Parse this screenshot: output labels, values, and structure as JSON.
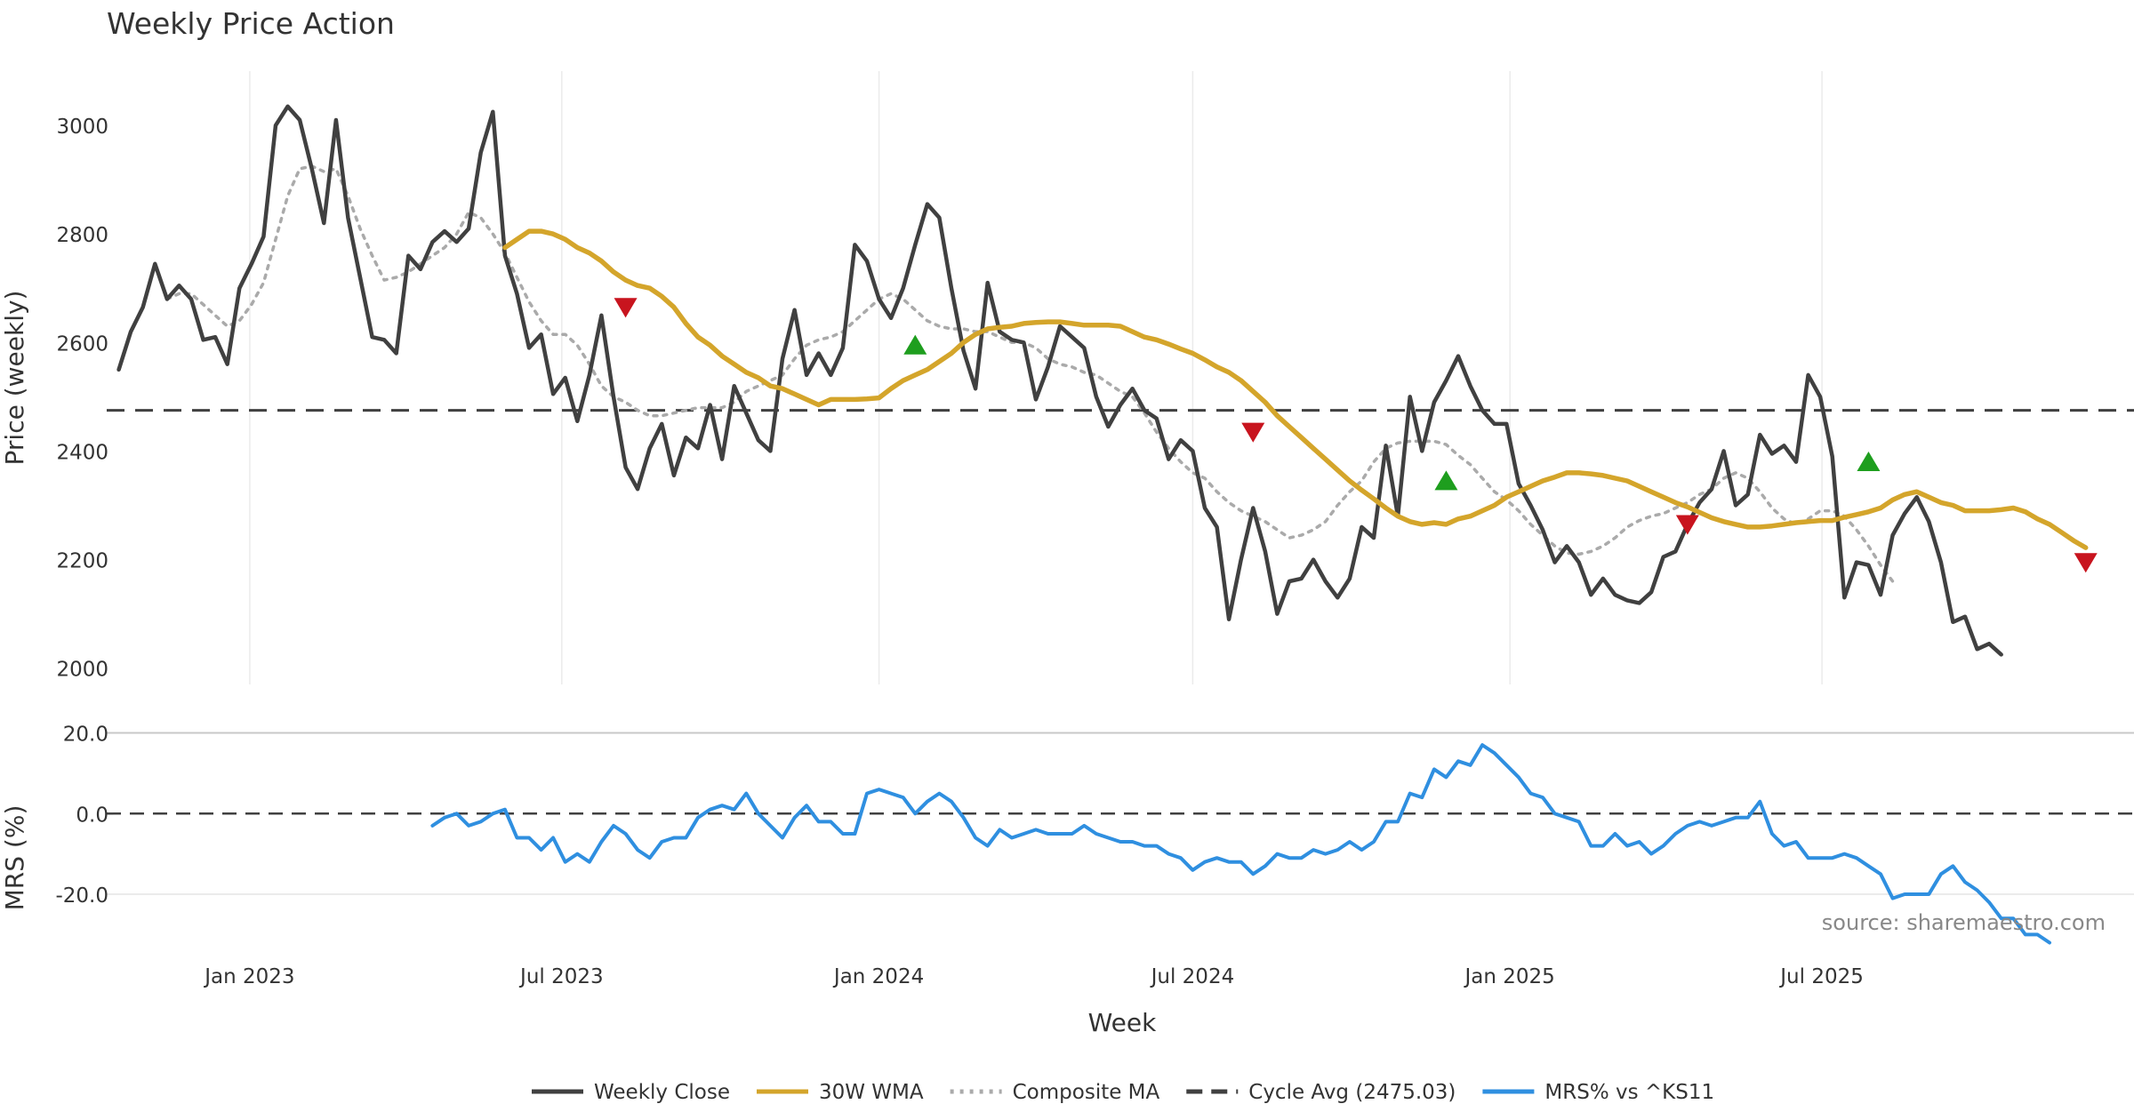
{
  "chart_data": {
    "type": "line",
    "title": "Weekly Price Action",
    "xlabel": "Week",
    "source": "source: sharemaestro.com",
    "x_ticks": [
      "Jan 2023",
      "Jul 2023",
      "Jan 2024",
      "Jul 2024",
      "Jan 2025",
      "Jul 2025"
    ],
    "x_range": [
      "2022-10-10",
      "2025-12-29"
    ],
    "grid": true,
    "legend_position": "bottom-center",
    "price_panel": {
      "ylabel": "Price (weekly)",
      "ylim": [
        1970,
        3100
      ],
      "y_ticks": [
        2000,
        2200,
        2400,
        2600,
        2800,
        3000
      ],
      "cycle_avg": 2475.03,
      "series": [
        {
          "name": "Weekly Close",
          "key": "close",
          "color": "#404040",
          "style": "solid",
          "start": "2022-10-17",
          "values": [
            2550,
            2620,
            2665,
            2745,
            2680,
            2705,
            2680,
            2605,
            2610,
            2560,
            2700,
            2745,
            2795,
            3000,
            3035,
            3010,
            2920,
            2820,
            3010,
            2830,
            2720,
            2610,
            2605,
            2580,
            2760,
            2735,
            2785,
            2805,
            2785,
            2810,
            2950,
            3025,
            2760,
            2690,
            2590,
            2615,
            2505,
            2535,
            2455,
            2540,
            2650,
            2500,
            2370,
            2330,
            2405,
            2450,
            2355,
            2425,
            2405,
            2485,
            2385,
            2520,
            2470,
            2420,
            2400,
            2570,
            2660,
            2540,
            2580,
            2540,
            2590,
            2780,
            2750,
            2680,
            2645,
            2700,
            2780,
            2855,
            2830,
            2700,
            2585,
            2515,
            2710,
            2620,
            2605,
            2600,
            2495,
            2555,
            2630,
            2610,
            2590,
            2500,
            2445,
            2485,
            2515,
            2475,
            2460,
            2385,
            2420,
            2400,
            2295,
            2260,
            2090,
            2200,
            2295,
            2215,
            2100,
            2160,
            2165,
            2200,
            2160,
            2130,
            2165,
            2260,
            2240,
            2410,
            2280,
            2500,
            2400,
            2490,
            2530,
            2575,
            2520,
            2475,
            2450,
            2450,
            2340,
            2300,
            2255,
            2195,
            2225,
            2195,
            2135,
            2165,
            2135,
            2125,
            2120,
            2140,
            2205,
            2215,
            2265,
            2305,
            2330,
            2400,
            2300,
            2320,
            2430,
            2395,
            2410,
            2380,
            2540,
            2500,
            2390,
            2130,
            2195,
            2190,
            2135,
            2245,
            2285,
            2315,
            2270,
            2195,
            2085,
            2095,
            2035,
            2045,
            2025
          ]
        },
        {
          "name": "30W WMA",
          "key": "wma",
          "color": "#D4A52B",
          "style": "solid",
          "start": "2023-05-29",
          "values": [
            2775,
            2790,
            2805,
            2805,
            2800,
            2790,
            2775,
            2765,
            2750,
            2730,
            2715,
            2705,
            2700,
            2685,
            2665,
            2635,
            2610,
            2595,
            2575,
            2560,
            2545,
            2535,
            2520,
            2515,
            2505,
            2495,
            2485,
            2495,
            2495,
            2495,
            2496,
            2498,
            2515,
            2530,
            2540,
            2550,
            2565,
            2580,
            2600,
            2615,
            2625,
            2628,
            2630,
            2635,
            2637,
            2638,
            2638,
            2635,
            2632,
            2632,
            2632,
            2630,
            2620,
            2610,
            2605,
            2597,
            2588,
            2580,
            2568,
            2555,
            2545,
            2530,
            2510,
            2490,
            2465,
            2445,
            2425,
            2405,
            2385,
            2365,
            2345,
            2328,
            2312,
            2295,
            2280,
            2270,
            2265,
            2268,
            2265,
            2275,
            2280,
            2290,
            2300,
            2315,
            2325,
            2335,
            2345,
            2352,
            2360,
            2360,
            2358,
            2355,
            2350,
            2345,
            2335,
            2325,
            2315,
            2305,
            2297,
            2287,
            2277,
            2270,
            2265,
            2260,
            2260,
            2262,
            2265,
            2268,
            2270,
            2272,
            2272,
            2278,
            2283,
            2288,
            2295,
            2310,
            2320,
            2325,
            2315,
            2305,
            2300,
            2290,
            2290,
            2290,
            2292,
            2295,
            2288,
            2275,
            2265,
            2250,
            2235,
            2222
          ]
        },
        {
          "name": "Composite MA",
          "key": "cma",
          "color": "#AAAAAA",
          "style": "dotted",
          "start": "2022-11-14",
          "values": [
            2680,
            2690,
            2690,
            2670,
            2650,
            2630,
            2640,
            2670,
            2710,
            2790,
            2870,
            2920,
            2925,
            2915,
            2920,
            2870,
            2810,
            2760,
            2715,
            2720,
            2730,
            2745,
            2760,
            2775,
            2800,
            2840,
            2830,
            2800,
            2765,
            2720,
            2675,
            2640,
            2615,
            2615,
            2595,
            2560,
            2520,
            2500,
            2490,
            2475,
            2465,
            2465,
            2470,
            2475,
            2480,
            2480,
            2480,
            2490,
            2510,
            2520,
            2530,
            2540,
            2570,
            2595,
            2605,
            2610,
            2620,
            2640,
            2660,
            2680,
            2690,
            2680,
            2660,
            2640,
            2630,
            2625,
            2625,
            2620,
            2620,
            2610,
            2600,
            2600,
            2590,
            2570,
            2560,
            2555,
            2545,
            2540,
            2525,
            2510,
            2500,
            2470,
            2435,
            2405,
            2380,
            2360,
            2350,
            2325,
            2305,
            2290,
            2280,
            2270,
            2255,
            2240,
            2245,
            2255,
            2270,
            2300,
            2325,
            2345,
            2380,
            2405,
            2415,
            2418,
            2418,
            2418,
            2412,
            2392,
            2375,
            2350,
            2325,
            2310,
            2290,
            2265,
            2245,
            2225,
            2212,
            2210,
            2215,
            2225,
            2240,
            2260,
            2272,
            2280,
            2285,
            2295,
            2305,
            2320,
            2330,
            2350,
            2360,
            2350,
            2325,
            2295,
            2275,
            2265,
            2275,
            2290,
            2290,
            2280,
            2255,
            2225,
            2190,
            2160
          ]
        }
      ],
      "signals": [
        {
          "date": "2023-08-07",
          "type": "sell",
          "price": 2665
        },
        {
          "date": "2024-01-22",
          "type": "buy",
          "price": 2595
        },
        {
          "date": "2024-08-05",
          "type": "sell",
          "price": 2435
        },
        {
          "date": "2024-11-25",
          "type": "buy",
          "price": 2345
        },
        {
          "date": "2025-04-14",
          "type": "sell",
          "price": 2265
        },
        {
          "date": "2025-07-28",
          "type": "buy",
          "price": 2380
        },
        {
          "date": "2025-12-01",
          "type": "sell",
          "price": 2195
        }
      ]
    },
    "mrs_panel": {
      "ylabel": "MRS (%)",
      "ylim": [
        -33,
        21
      ],
      "y_ticks": [
        "20.0",
        "0.0",
        "-20.0"
      ],
      "y_tick_values": [
        20,
        0,
        -20
      ],
      "series": [
        {
          "name": "MRS% vs ^KS11",
          "key": "mrs",
          "color": "#2F8FE0",
          "style": "solid",
          "start": "2023-04-17",
          "values": [
            -3,
            -1,
            0,
            -3,
            -2,
            0,
            1,
            -6,
            -6,
            -9,
            -6,
            -12,
            -10,
            -12,
            -7,
            -3,
            -5,
            -9,
            -11,
            -7,
            -6,
            -6,
            -1,
            1,
            2,
            1,
            5,
            0,
            -3,
            -6,
            -1,
            2,
            -2,
            -2,
            -5,
            -5,
            5,
            6,
            5,
            4,
            0,
            3,
            5,
            3,
            -1,
            -6,
            -8,
            -4,
            -6,
            -5,
            -4,
            -5,
            -5,
            -5,
            -3,
            -5,
            -6,
            -7,
            -7,
            -8,
            -8,
            -10,
            -11,
            -14,
            -12,
            -11,
            -12,
            -12,
            -15,
            -13,
            -10,
            -11,
            -11,
            -9,
            -10,
            -9,
            -7,
            -9,
            -7,
            -2,
            -2,
            5,
            4,
            11,
            9,
            13,
            12,
            17,
            15,
            12,
            9,
            5,
            4,
            0,
            -1,
            -2,
            -8,
            -8,
            -5,
            -8,
            -7,
            -10,
            -8,
            -5,
            -3,
            -2,
            -3,
            -2,
            -1,
            -1,
            3,
            -5,
            -8,
            -7,
            -11,
            -11,
            -11,
            -10,
            -11,
            -13,
            -15,
            -21,
            -20,
            -20,
            -20,
            -15,
            -13,
            -17,
            -19,
            -22,
            -26,
            -26,
            -30,
            -30,
            -32
          ]
        }
      ]
    },
    "legend": [
      {
        "label": "Weekly Close",
        "color": "#404040",
        "style": "solid"
      },
      {
        "label": "30W WMA",
        "color": "#D4A52B",
        "style": "solid"
      },
      {
        "label": "Composite MA",
        "color": "#AAAAAA",
        "style": "dotted"
      },
      {
        "label": "Cycle Avg (2475.03)",
        "color": "#404040",
        "style": "dashed"
      },
      {
        "label": "MRS% vs ^KS11",
        "color": "#2F8FE0",
        "style": "solid"
      }
    ],
    "colors": {
      "buy": "#1E9E1E",
      "sell": "#C8141E",
      "grid": "#EBEBEB",
      "cycle": "#404040"
    }
  }
}
